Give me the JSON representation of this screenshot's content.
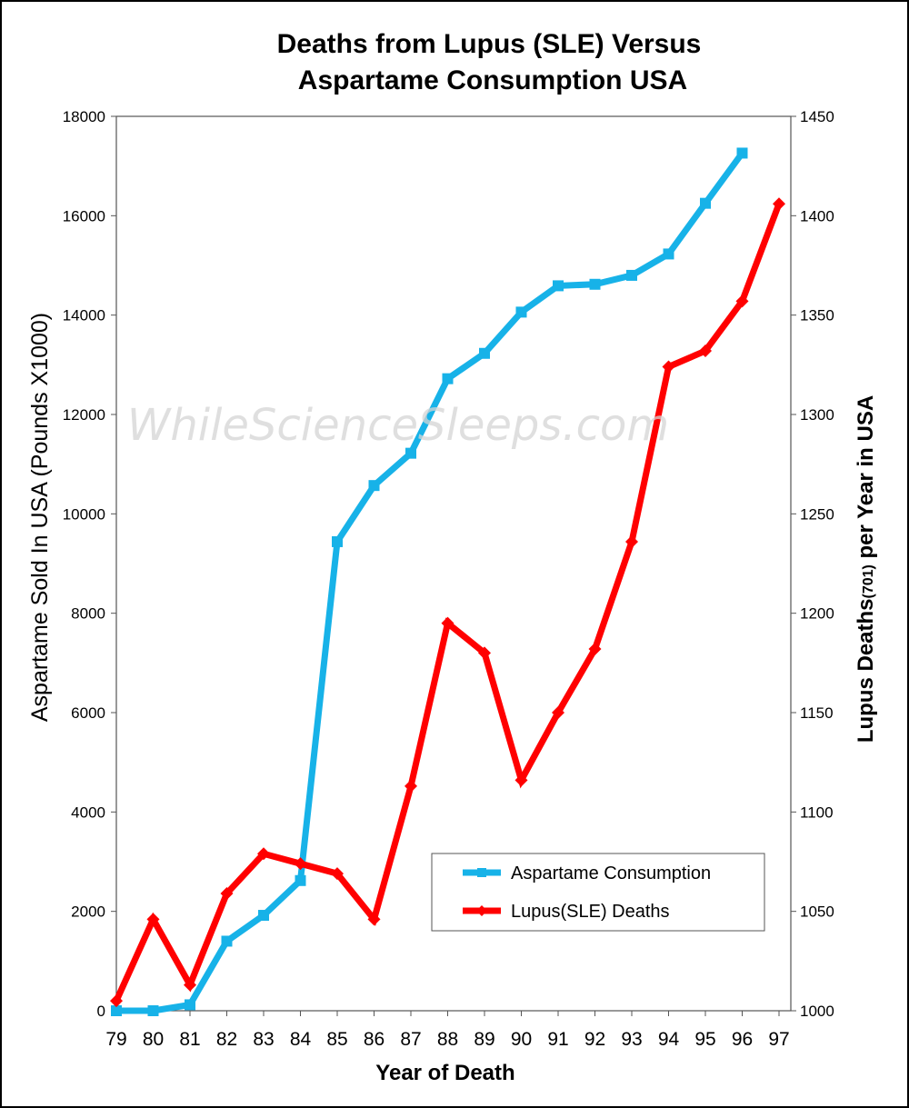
{
  "chart_data": {
    "type": "line",
    "title_line1": "Deaths from Lupus (SLE) Versus",
    "title_line2": "Aspartame Consumption USA",
    "xlabel": "Year of Death",
    "ylabel_left": "Aspartame Sold In USA  (Pounds X1000)",
    "ylabel_right_part1": "Lupus Deaths",
    "ylabel_right_sub": "(701)",
    "ylabel_right_part2": " per Year in USA",
    "watermark": "WhileScienceSleeps.com",
    "categories": [
      "79",
      "80",
      "81",
      "82",
      "83",
      "84",
      "85",
      "86",
      "87",
      "88",
      "89",
      "90",
      "91",
      "92",
      "93",
      "94",
      "95",
      "96",
      "97"
    ],
    "ylim_left": [
      0,
      18000
    ],
    "ylim_right": [
      1000,
      1450
    ],
    "yticks_left": [
      "0",
      "2000",
      "4000",
      "6000",
      "8000",
      "10000",
      "12000",
      "14000",
      "16000",
      "18000"
    ],
    "yticks_right": [
      "1000",
      "1050",
      "1100",
      "1150",
      "1200",
      "1250",
      "1300",
      "1350",
      "1400",
      "1450"
    ],
    "legend_position": "lower-right",
    "series": [
      {
        "name": "Aspartame Consumption",
        "axis": "left",
        "color": "#17b2e8",
        "marker": "square",
        "values": [
          0,
          0,
          120,
          1400,
          1920,
          2620,
          9440,
          10570,
          11220,
          12720,
          13230,
          14060,
          14590,
          14620,
          14800,
          15230,
          16250,
          17260,
          null
        ]
      },
      {
        "name": "Lupus(SLE) Deaths",
        "axis": "right",
        "color": "#ff0000",
        "marker": "diamond",
        "values": [
          1005,
          1046,
          1013,
          1059,
          1079,
          1074,
          1069,
          1046,
          1113,
          1195,
          1180,
          1116,
          1150,
          1182,
          1236,
          1324,
          1332,
          1357,
          1406
        ]
      }
    ]
  }
}
